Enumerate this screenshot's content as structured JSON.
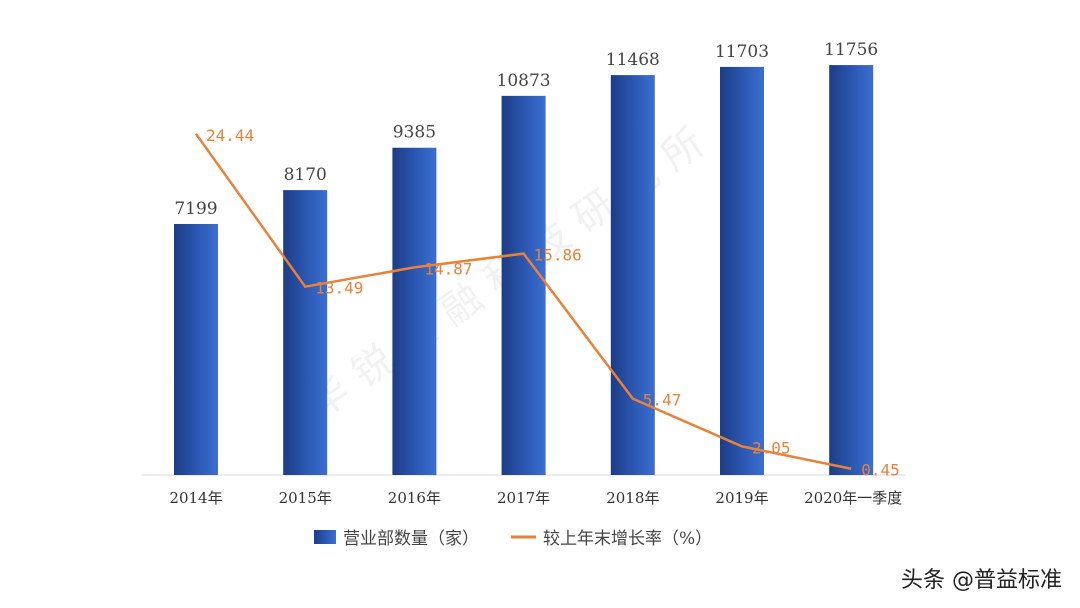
{
  "chart_data": {
    "type": "bar+line",
    "categories": [
      "2014年",
      "2015年",
      "2016年",
      "2017年",
      "2018年",
      "2019年",
      "2020年一季度"
    ],
    "series": [
      {
        "name": "营业部数量（家）",
        "type": "bar",
        "values": [
          7199,
          8170,
          9385,
          10873,
          11468,
          11703,
          11756
        ],
        "color": "#2f5fc0"
      },
      {
        "name": "较上年末增长率（%）",
        "type": "line",
        "values": [
          24.44,
          13.49,
          14.87,
          15.86,
          5.47,
          2.05,
          0.45
        ],
        "color": "#e8823a"
      }
    ],
    "bar_ylim": [
      0,
      13600
    ],
    "line_ylim": [
      0,
      34
    ],
    "grid": false,
    "legend_position": "bottom"
  },
  "watermark": "华锐金融科技研究所",
  "credit": "头条 @普益标准"
}
